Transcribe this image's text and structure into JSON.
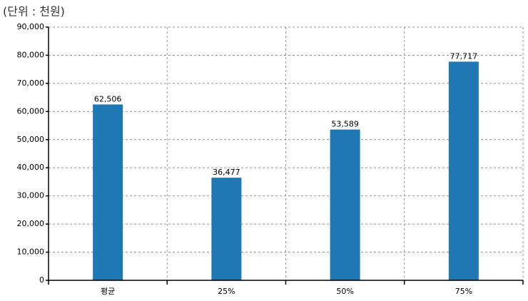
{
  "chart_data": {
    "type": "bar",
    "title": "(단위 : 천원)",
    "categories": [
      "평균",
      "25%",
      "50%",
      "75%"
    ],
    "values": [
      62506,
      36477,
      53589,
      77717
    ],
    "value_labels": [
      "62,506",
      "36,477",
      "53,589",
      "77,717"
    ],
    "color": "#1f77b4",
    "ylim": [
      0,
      90000
    ],
    "yticks": [
      0,
      {
        "value": 10000,
        "label": "10,000"
      },
      {
        "value": 20000,
        "label": "20,000"
      },
      {
        "value": 30000,
        "label": "30,000"
      },
      {
        "value": 40000,
        "label": "40,000"
      },
      {
        "value": 50000,
        "label": "50,000"
      },
      {
        "value": 60000,
        "label": "60,000"
      },
      {
        "value": 70000,
        "label": "70,000"
      },
      {
        "value": 80000,
        "label": "80,000"
      },
      {
        "value": 90000,
        "label": "90,000"
      }
    ],
    "grid": true
  }
}
